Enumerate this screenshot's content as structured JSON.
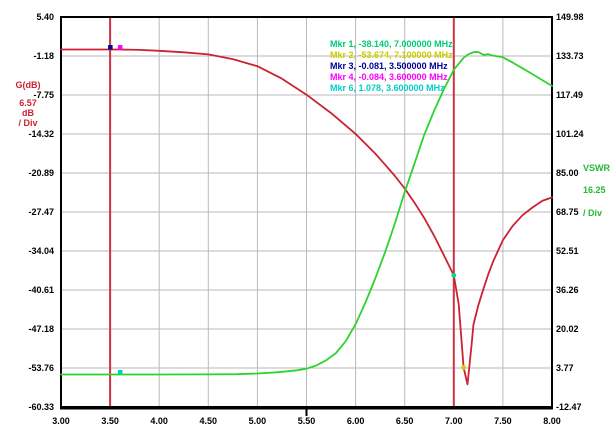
{
  "chart_data": {
    "type": "line",
    "title": "",
    "x_axis": {
      "min": 3.0,
      "max": 8.0,
      "tick_labels": [
        "3.00",
        "3.50",
        "4.00",
        "4.50",
        "5.00",
        "5.50",
        "6.00",
        "6.50",
        "7.00",
        "7.50",
        "8.00"
      ],
      "sub_tick_at": 5.5
    },
    "y_left_axis": {
      "label": "G(dB)",
      "per_div_value": "6.57",
      "per_div_unit": "dB",
      "per_div_suffix": "/ Div",
      "min": -60.33,
      "max": 5.4,
      "tick_labels": [
        "5.40",
        "-1.18",
        "-7.75",
        "-14.32",
        "-20.89",
        "-27.47",
        "-34.04",
        "-40.61",
        "-47.18",
        "-53.76",
        "-60.33"
      ],
      "color": "#cc2233"
    },
    "y_right_axis": {
      "label": "VSWR",
      "per_div_value": "16.25",
      "per_div_suffix": "/ Div",
      "min": -12.47,
      "max": 149.98,
      "tick_labels": [
        "149.98",
        "133.73",
        "117.49",
        "101.24",
        "85.00",
        "68.75",
        "52.51",
        "36.26",
        "20.02",
        "3.77",
        "-12.47"
      ],
      "color": "#22bb33"
    },
    "grid": {
      "on": true,
      "color": "#b9b9b9"
    },
    "frame_color": "#000000",
    "vlines": [
      {
        "x": 3.5,
        "color": "#cc3344"
      },
      {
        "x": 7.0,
        "color": "#cc3344"
      }
    ],
    "series": [
      {
        "name": "Gain G(dB)",
        "axis": "left",
        "color": "#cc2233",
        "points": [
          [
            3.0,
            -0.08
          ],
          [
            3.3,
            -0.08
          ],
          [
            3.5,
            -0.081
          ],
          [
            3.6,
            -0.084
          ],
          [
            3.8,
            -0.15
          ],
          [
            4.0,
            -0.3
          ],
          [
            4.25,
            -0.55
          ],
          [
            4.5,
            -0.9
          ],
          [
            4.75,
            -1.7
          ],
          [
            5.0,
            -2.9
          ],
          [
            5.25,
            -5.0
          ],
          [
            5.5,
            -7.7
          ],
          [
            5.75,
            -10.8
          ],
          [
            6.0,
            -14.3
          ],
          [
            6.2,
            -17.6
          ],
          [
            6.3,
            -19.5
          ],
          [
            6.4,
            -21.4
          ],
          [
            6.5,
            -23.5
          ],
          [
            6.6,
            -25.9
          ],
          [
            6.7,
            -28.5
          ],
          [
            6.8,
            -31.5
          ],
          [
            6.9,
            -34.8
          ],
          [
            7.0,
            -38.14
          ],
          [
            7.05,
            -43.0
          ],
          [
            7.1,
            -53.674
          ],
          [
            7.14,
            -56.5
          ],
          [
            7.18,
            -50.0
          ],
          [
            7.2,
            -46.5
          ],
          [
            7.25,
            -43.2
          ],
          [
            7.3,
            -40.5
          ],
          [
            7.35,
            -38.0
          ],
          [
            7.4,
            -35.8
          ],
          [
            7.5,
            -32.2
          ],
          [
            7.6,
            -29.8
          ],
          [
            7.7,
            -28.0
          ],
          [
            7.8,
            -26.7
          ],
          [
            7.9,
            -25.6
          ],
          [
            8.0,
            -25.0
          ]
        ]
      },
      {
        "name": "VSWR",
        "axis": "right",
        "color": "#2fd32f",
        "points": [
          [
            3.0,
            1.05
          ],
          [
            3.5,
            1.06
          ],
          [
            3.6,
            1.078
          ],
          [
            4.0,
            1.08
          ],
          [
            4.5,
            1.1
          ],
          [
            4.8,
            1.2
          ],
          [
            5.0,
            1.5
          ],
          [
            5.2,
            2.0
          ],
          [
            5.4,
            2.8
          ],
          [
            5.5,
            3.5
          ],
          [
            5.6,
            4.8
          ],
          [
            5.7,
            7.0
          ],
          [
            5.8,
            10.0
          ],
          [
            5.9,
            15.0
          ],
          [
            6.0,
            22.0
          ],
          [
            6.1,
            31.0
          ],
          [
            6.2,
            41.0
          ],
          [
            6.3,
            52.0
          ],
          [
            6.4,
            64.0
          ],
          [
            6.5,
            77.0
          ],
          [
            6.6,
            89.0
          ],
          [
            6.7,
            101.0
          ],
          [
            6.8,
            111.0
          ],
          [
            6.9,
            120.0
          ],
          [
            7.0,
            128.0
          ],
          [
            7.1,
            133.0
          ],
          [
            7.15,
            134.5
          ],
          [
            7.2,
            135.3
          ],
          [
            7.25,
            135.4
          ],
          [
            7.3,
            134.2
          ],
          [
            7.35,
            134.5
          ],
          [
            7.4,
            133.9
          ],
          [
            7.5,
            133.2
          ],
          [
            7.6,
            131.0
          ],
          [
            7.7,
            128.6
          ],
          [
            7.8,
            126.2
          ],
          [
            7.9,
            123.7
          ],
          [
            8.0,
            121.3
          ]
        ]
      }
    ],
    "point_markers": [
      {
        "name": "marker-1",
        "axis": "left",
        "x": 7.0,
        "y": -38.14,
        "color": "#00dd88",
        "shape": "dot"
      },
      {
        "name": "marker-2",
        "axis": "left",
        "x": 7.1,
        "y": -53.674,
        "color": "#cccc00",
        "shape": "dot"
      },
      {
        "name": "marker-3",
        "axis": "left",
        "x": 3.5,
        "y": -0.081,
        "color": "#000099",
        "shape": "square"
      },
      {
        "name": "marker-4",
        "axis": "left",
        "x": 3.6,
        "y": -0.084,
        "color": "#ff00ff",
        "shape": "square"
      },
      {
        "name": "marker-6",
        "axis": "right",
        "x": 3.6,
        "y": 1.078,
        "color": "#00cccc",
        "shape": "square"
      }
    ],
    "legend": {
      "position": "top-center-inside",
      "items": [
        {
          "text": "Mkr 1, -38.140, 7.000000 MHz",
          "color": "#00cc77"
        },
        {
          "text": "Mkr 2, -53.674, 7.100000 MHz",
          "color": "#cccc00"
        },
        {
          "text": "Mkr 3, -0.081, 3.500000 MHz",
          "color": "#000099"
        },
        {
          "text": "Mkr 4, -0.084, 3.600000 MHz",
          "color": "#ff00ff"
        },
        {
          "text": "Mkr 6, 1.078, 3.600000 MHz",
          "color": "#00cccc"
        }
      ]
    }
  }
}
